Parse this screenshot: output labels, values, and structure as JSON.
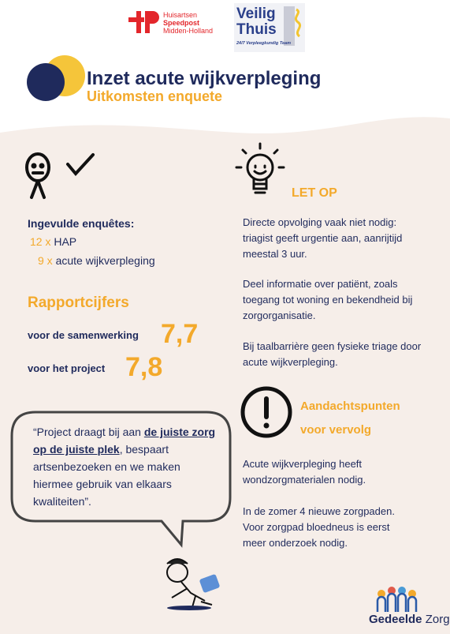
{
  "logos": {
    "hap": {
      "icon": "+P",
      "lines": [
        "Huisartsen",
        "Speedpost",
        "Midden-Holland"
      ]
    },
    "veilig_thuis": {
      "lines": [
        "Veilig",
        "Thuis"
      ],
      "tagline": "24/7 Verpleegkundig Team"
    }
  },
  "header": {
    "title": "Inzet acute wijkverpleging",
    "subtitle": "Uitkomsten enquete"
  },
  "survey": {
    "heading": "Ingevulde enquêtes:",
    "items": [
      {
        "count": "12 x",
        "label": "HAP"
      },
      {
        "count": "9 x",
        "label": "acute wijkverpleging"
      }
    ]
  },
  "grades": {
    "heading": "Rapportcijfers",
    "items": [
      {
        "label": "voor de samenwerking",
        "grade": "7,7"
      },
      {
        "label": "voor het project",
        "grade": "7,8"
      }
    ]
  },
  "quote": {
    "before": "“Project draagt bij aan ",
    "emphasis": "de juiste zorg op de juiste plek",
    "after": ", bespaart artsenbezoeken en we maken hiermee gebruik van elkaars kwaliteiten”."
  },
  "let_op": {
    "heading": "LET OP",
    "paragraphs": [
      "Directe opvolging vaak niet nodig: triagist geeft urgentie aan, aanrijtijd meestal 3 uur.",
      "Deel informatie over patiënt, zoals toegang tot woning en bekendheid bij zorgorganisatie.",
      "Bij taalbarrière geen fysieke triage door acute wijkverpleging."
    ]
  },
  "attention": {
    "heading": [
      "Aandachtspunten",
      "voor vervolg"
    ],
    "paragraphs": [
      "Acute wijkverpleging heeft wondzorgmaterialen nodig.",
      "In de zomer 4 nieuwe zorgpaden. Voor zorgpad bloedneus is eerst meer onderzoek nodig."
    ]
  },
  "footer": {
    "brand": [
      "Gedeelde",
      "Zorg"
    ]
  }
}
